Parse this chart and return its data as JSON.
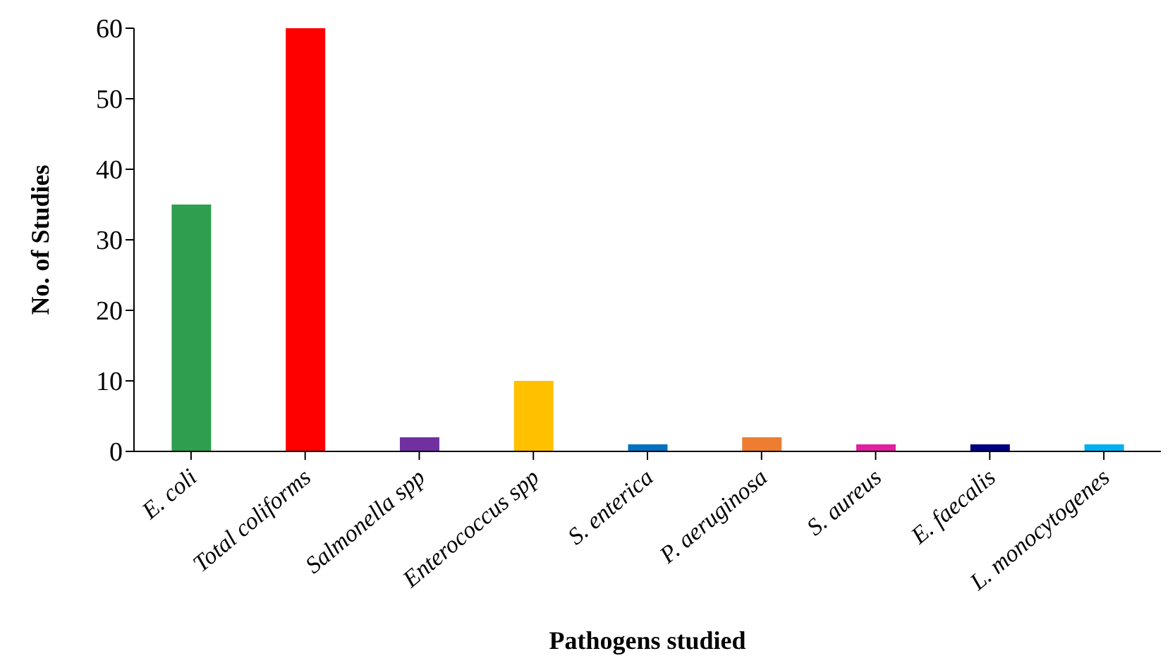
{
  "chart_data": {
    "type": "bar",
    "xlabel": "Pathogens studied",
    "ylabel": "No. of Studies",
    "categories": [
      "E. coli",
      "Total coliforms",
      "Salmonella spp",
      "Enterococcus spp",
      "S. enterica",
      "P. aeruginosa",
      "S. aureus",
      "E. faecalis",
      "L. monocytogenes"
    ],
    "values": [
      35,
      60,
      2,
      10,
      1,
      2,
      1,
      1,
      1
    ],
    "colors": [
      "#2e9e4f",
      "#ff0000",
      "#7030a0",
      "#ffc000",
      "#0070c0",
      "#ed7d31",
      "#e020a0",
      "#000080",
      "#00b0f0"
    ],
    "ylim": [
      0,
      60
    ],
    "yticks": [
      0,
      10,
      20,
      30,
      40,
      50,
      60
    ],
    "grid": false,
    "legend": false
  }
}
